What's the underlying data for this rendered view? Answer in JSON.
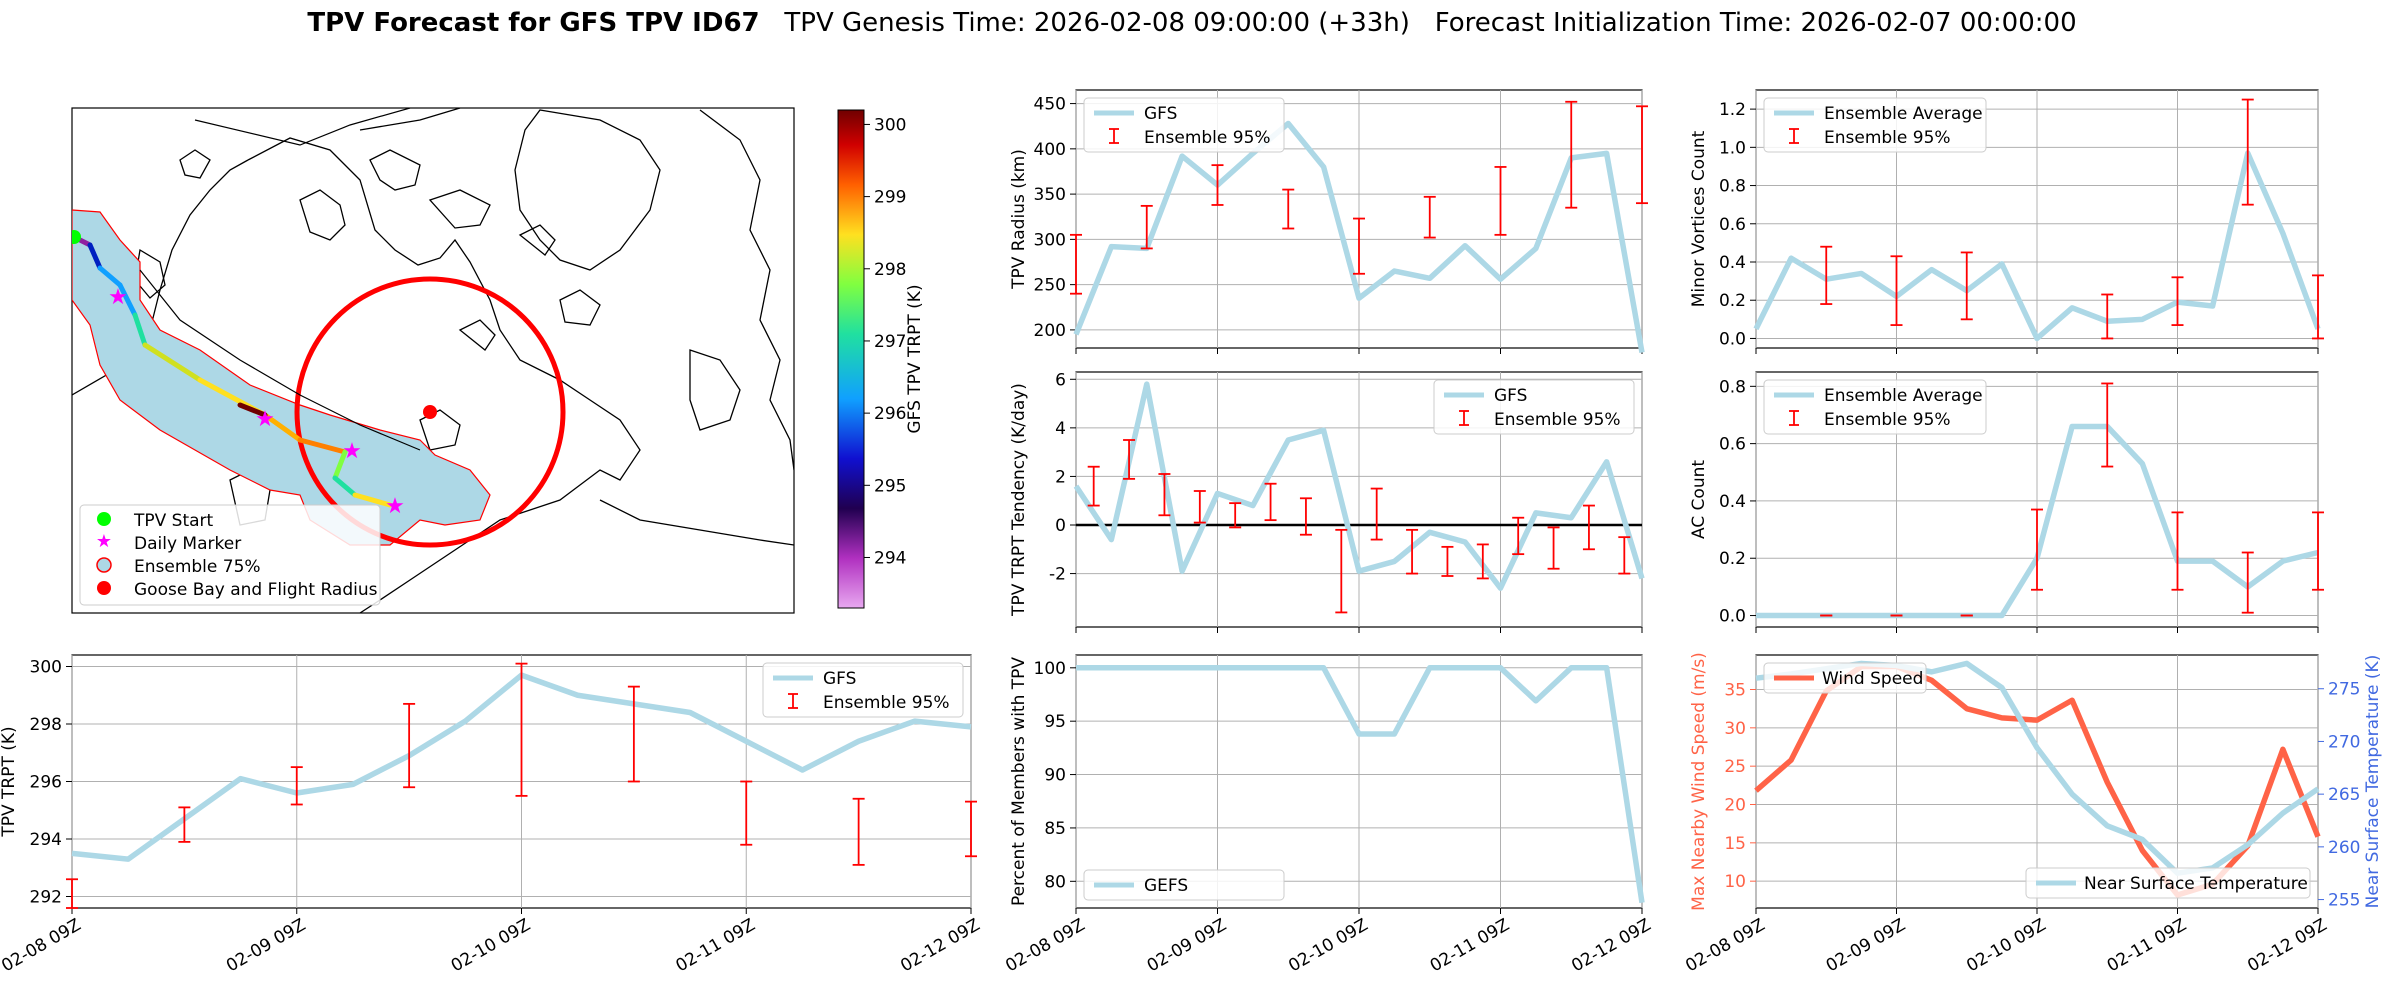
{
  "title": {
    "bold": "TPV Forecast for GFS TPV ID67",
    "genesis": "TPV Genesis Time: 2026-02-08 09:00:00 (+33h)",
    "init": "Forecast Initialization Time: 2026-02-07 00:00:00"
  },
  "colors": {
    "gfs": "#add8e6",
    "ensemble": "#ff0000",
    "wind": "#ff6347",
    "temp_axis": "#4169e1"
  },
  "map": {
    "legend": [
      "TPV Start",
      "Daily Marker",
      "Ensemble 75%",
      "Goose Bay and Flight Radius"
    ],
    "colorbar_label": "GFS TPV TRPT (K)",
    "colorbar_ticks": [
      "300",
      "299",
      "298",
      "297",
      "296",
      "295",
      "294"
    ]
  },
  "chart_data": [
    {
      "id": "radius",
      "type": "line",
      "ylabel": "TPV Radius (km)",
      "ylim": [
        180,
        465
      ],
      "yticks": [
        200,
        250,
        300,
        350,
        400,
        450
      ],
      "legend": [
        "GFS",
        "Ensemble 95%"
      ],
      "x_hours": [
        0,
        6,
        12,
        18,
        24,
        30,
        36,
        42,
        48,
        54,
        60,
        66,
        72,
        78,
        84,
        90,
        96
      ],
      "series": [
        {
          "name": "GFS",
          "values": [
            195,
            292,
            290,
            392,
            360,
            395,
            428,
            380,
            235,
            265,
            257,
            293,
            256,
            290,
            390,
            395,
            175
          ]
        }
      ],
      "errorbars": [
        {
          "x": 0,
          "lo": 240,
          "hi": 305
        },
        {
          "x": 12,
          "lo": 290,
          "hi": 337
        },
        {
          "x": 24,
          "lo": 338,
          "hi": 382
        },
        {
          "x": 36,
          "lo": 312,
          "hi": 355
        },
        {
          "x": 48,
          "lo": 262,
          "hi": 323
        },
        {
          "x": 60,
          "lo": 302,
          "hi": 347
        },
        {
          "x": 72,
          "lo": 305,
          "hi": 380
        },
        {
          "x": 84,
          "lo": 335,
          "hi": 452
        },
        {
          "x": 96,
          "lo": 340,
          "hi": 447
        }
      ]
    },
    {
      "id": "minor",
      "type": "line",
      "ylabel": "Minor Vortices Count",
      "ylim": [
        -0.05,
        1.3
      ],
      "yticks": [
        "0.0",
        "0.2",
        "0.4",
        "0.6",
        "0.8",
        "1.0",
        "1.2"
      ],
      "legend": [
        "Ensemble Average",
        "Ensemble 95%"
      ],
      "x_hours": [
        0,
        6,
        12,
        18,
        24,
        30,
        36,
        42,
        48,
        54,
        60,
        66,
        72,
        78,
        84,
        90,
        96
      ],
      "series": [
        {
          "name": "Ensemble Average",
          "values": [
            0.05,
            0.42,
            0.31,
            0.34,
            0.22,
            0.36,
            0.25,
            0.39,
            0.0,
            0.16,
            0.09,
            0.1,
            0.19,
            0.17,
            0.97,
            0.55,
            0.05
          ]
        }
      ],
      "errorbars": [
        {
          "x": 12,
          "lo": 0.18,
          "hi": 0.48
        },
        {
          "x": 24,
          "lo": 0.07,
          "hi": 0.43
        },
        {
          "x": 36,
          "lo": 0.1,
          "hi": 0.45
        },
        {
          "x": 60,
          "lo": 0.0,
          "hi": 0.23
        },
        {
          "x": 72,
          "lo": 0.07,
          "hi": 0.32
        },
        {
          "x": 84,
          "lo": 0.7,
          "hi": 1.25
        },
        {
          "x": 96,
          "lo": 0.0,
          "hi": 0.33
        }
      ]
    },
    {
      "id": "tendency",
      "type": "line",
      "ylabel": "TPV TRPT Tendency (K/day)",
      "ylim": [
        -4.2,
        6.3
      ],
      "yticks": [
        -2,
        0,
        2,
        4,
        6
      ],
      "legend": [
        "GFS",
        "Ensemble 95%"
      ],
      "x_hours": [
        0,
        6,
        12,
        18,
        24,
        30,
        36,
        42,
        48,
        54,
        60,
        66,
        72,
        78,
        84,
        90,
        96
      ],
      "series": [
        {
          "name": "GFS",
          "values": [
            1.6,
            -0.6,
            5.8,
            -1.9,
            1.3,
            0.8,
            3.5,
            3.9,
            -1.9,
            -1.5,
            -0.3,
            -0.7,
            -2.6,
            0.5,
            0.3,
            2.6,
            -2.2
          ]
        }
      ],
      "errorbars": [
        {
          "x": 3,
          "lo": 0.8,
          "hi": 2.4
        },
        {
          "x": 9,
          "lo": 1.9,
          "hi": 3.5
        },
        {
          "x": 15,
          "lo": 0.4,
          "hi": 2.1
        },
        {
          "x": 21,
          "lo": 0.1,
          "hi": 1.4
        },
        {
          "x": 27,
          "lo": -0.1,
          "hi": 0.9
        },
        {
          "x": 33,
          "lo": 0.2,
          "hi": 1.7
        },
        {
          "x": 39,
          "lo": -0.4,
          "hi": 1.1
        },
        {
          "x": 45,
          "lo": -3.6,
          "hi": -0.2
        },
        {
          "x": 51,
          "lo": -0.6,
          "hi": 1.5
        },
        {
          "x": 57,
          "lo": -2.0,
          "hi": -0.2
        },
        {
          "x": 63,
          "lo": -2.1,
          "hi": -0.9
        },
        {
          "x": 69,
          "lo": -2.2,
          "hi": -0.8
        },
        {
          "x": 75,
          "lo": -1.2,
          "hi": 0.3
        },
        {
          "x": 81,
          "lo": -1.8,
          "hi": -0.1
        },
        {
          "x": 87,
          "lo": -1.0,
          "hi": 0.8
        },
        {
          "x": 93,
          "lo": -2.0,
          "hi": -0.5
        }
      ]
    },
    {
      "id": "ac",
      "type": "line",
      "ylabel": "AC Count",
      "ylim": [
        -0.04,
        0.85
      ],
      "yticks": [
        "0.0",
        "0.2",
        "0.4",
        "0.6",
        "0.8"
      ],
      "legend": [
        "Ensemble Average",
        "Ensemble 95%"
      ],
      "x_hours": [
        0,
        6,
        12,
        18,
        24,
        30,
        36,
        42,
        48,
        54,
        60,
        66,
        72,
        78,
        84,
        90,
        96
      ],
      "series": [
        {
          "name": "Ensemble Average",
          "values": [
            0,
            0,
            0,
            0,
            0,
            0,
            0,
            0,
            0.2,
            0.66,
            0.66,
            0.53,
            0.19,
            0.19,
            0.1,
            0.19,
            0.22
          ]
        }
      ],
      "errorbars": [
        {
          "x": 12,
          "lo": 0.0,
          "hi": 0.0
        },
        {
          "x": 24,
          "lo": 0.0,
          "hi": 0.0
        },
        {
          "x": 36,
          "lo": 0.0,
          "hi": 0.0
        },
        {
          "x": 48,
          "lo": 0.09,
          "hi": 0.37
        },
        {
          "x": 60,
          "lo": 0.52,
          "hi": 0.81
        },
        {
          "x": 72,
          "lo": 0.09,
          "hi": 0.36
        },
        {
          "x": 84,
          "lo": 0.01,
          "hi": 0.22
        },
        {
          "x": 96,
          "lo": 0.09,
          "hi": 0.36
        }
      ]
    },
    {
      "id": "trpt",
      "type": "line",
      "ylabel": "TPV TRPT (K)",
      "ylim": [
        291.6,
        300.4
      ],
      "yticks": [
        292,
        294,
        296,
        298,
        300
      ],
      "legend": [
        "GFS",
        "Ensemble 95%"
      ],
      "x_hours": [
        0,
        6,
        12,
        18,
        24,
        30,
        36,
        42,
        48,
        54,
        60,
        66,
        72,
        78,
        84,
        90,
        96
      ],
      "series": [
        {
          "name": "GFS",
          "values": [
            293.5,
            293.3,
            294.7,
            296.1,
            295.6,
            295.9,
            296.9,
            298.1,
            299.7,
            299.0,
            298.7,
            298.4,
            297.4,
            296.4,
            297.4,
            298.1,
            297.9
          ]
        }
      ],
      "errorbars": [
        {
          "x": 0,
          "lo": 291.6,
          "hi": 292.6
        },
        {
          "x": 12,
          "lo": 293.9,
          "hi": 295.1
        },
        {
          "x": 24,
          "lo": 295.2,
          "hi": 296.5
        },
        {
          "x": 36,
          "lo": 295.8,
          "hi": 298.7
        },
        {
          "x": 48,
          "lo": 295.5,
          "hi": 300.1
        },
        {
          "x": 60,
          "lo": 296.0,
          "hi": 299.3
        },
        {
          "x": 72,
          "lo": 293.8,
          "hi": 296.0
        },
        {
          "x": 84,
          "lo": 293.1,
          "hi": 295.4
        },
        {
          "x": 96,
          "lo": 293.4,
          "hi": 295.3
        }
      ]
    },
    {
      "id": "percent",
      "type": "line",
      "ylabel": "Percent of Members with TPV",
      "ylim": [
        77.5,
        101.2
      ],
      "yticks": [
        80,
        85,
        90,
        95,
        100
      ],
      "legend": [
        "GEFS"
      ],
      "x_hours": [
        0,
        6,
        12,
        18,
        24,
        30,
        36,
        42,
        48,
        54,
        60,
        66,
        72,
        78,
        84,
        90,
        96
      ],
      "series": [
        {
          "name": "GEFS",
          "values": [
            100,
            100,
            100,
            100,
            100,
            100,
            100,
            100,
            93.8,
            93.8,
            100,
            100,
            100,
            96.9,
            100,
            100,
            78
          ]
        }
      ]
    },
    {
      "id": "wind_temp",
      "type": "line",
      "ylabel": "Max Nearby Wind Speed (m/s)",
      "ylim": [
        6.5,
        39.5
      ],
      "yticks": [
        10,
        15,
        20,
        25,
        30,
        35
      ],
      "y2label": "Near Surface Temperature (K)",
      "y2lim": [
        254.2,
        278.2
      ],
      "y2ticks": [
        255,
        260,
        265,
        270,
        275
      ],
      "legend": [
        "Wind Speed",
        "Near Surface Temperature"
      ],
      "x_hours": [
        0,
        6,
        12,
        18,
        24,
        30,
        36,
        42,
        48,
        54,
        60,
        66,
        72,
        78,
        84,
        90,
        96
      ],
      "series": [
        {
          "name": "Wind Speed",
          "axis": "left",
          "values": [
            21.8,
            25.8,
            34.8,
            38.0,
            38.0,
            36.2,
            32.5,
            31.3,
            31.0,
            33.6,
            22.9,
            14.0,
            8.2,
            9.6,
            14.6,
            27.2,
            15.8
          ]
        },
        {
          "name": "Near Surface Temperature",
          "axis": "right",
          "values": [
            276.0,
            276.4,
            276.9,
            277.4,
            277.2,
            276.6,
            277.4,
            275.1,
            269.4,
            265.0,
            262.0,
            260.7,
            257.5,
            258.0,
            260.2,
            263.2,
            265.5
          ]
        }
      ]
    }
  ],
  "xticks": [
    "02-08 09Z",
    "02-09 09Z",
    "02-10 09Z",
    "02-11 09Z",
    "02-12 09Z"
  ]
}
